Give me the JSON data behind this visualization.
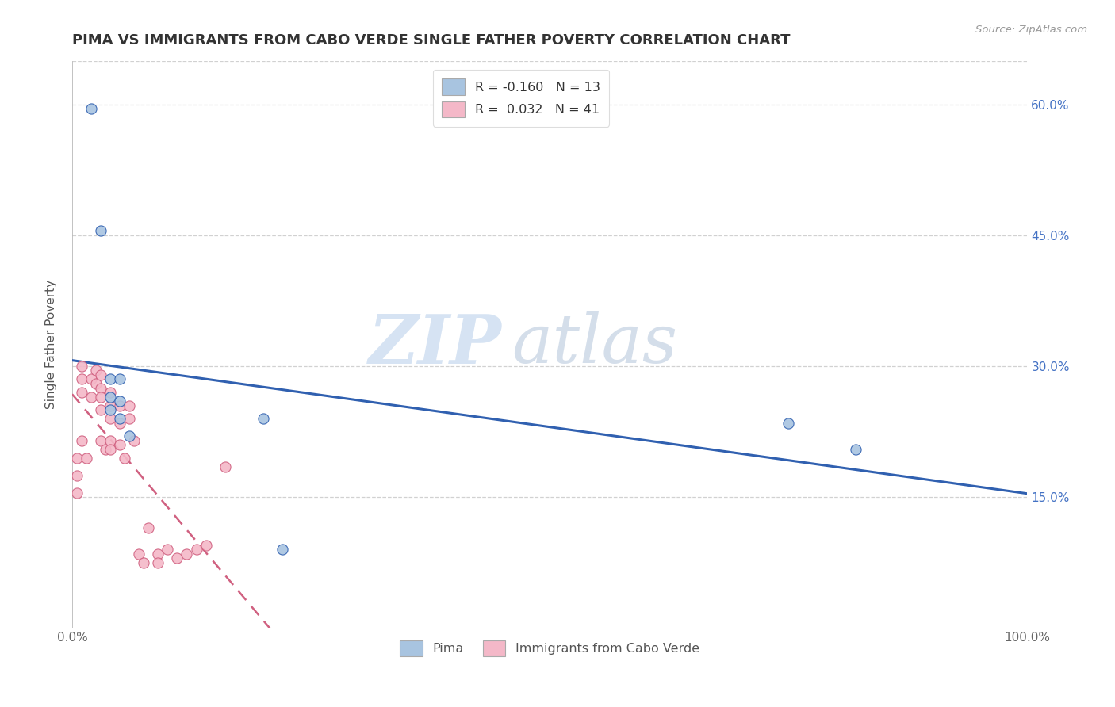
{
  "title": "PIMA VS IMMIGRANTS FROM CABO VERDE SINGLE FATHER POVERTY CORRELATION CHART",
  "source": "Source: ZipAtlas.com",
  "ylabel": "Single Father Poverty",
  "xlabel": "",
  "xlim": [
    0.0,
    1.0
  ],
  "ylim": [
    0.0,
    0.65
  ],
  "yticks": [
    0.15,
    0.3,
    0.45,
    0.6
  ],
  "ytick_labels": [
    "15.0%",
    "30.0%",
    "45.0%",
    "60.0%"
  ],
  "xticks": [
    0.0,
    1.0
  ],
  "xtick_labels": [
    "0.0%",
    "100.0%"
  ],
  "right_ytick_labels": [
    "15.0%",
    "30.0%",
    "45.0%",
    "60.0%"
  ],
  "pima_color": "#a8c4e0",
  "cabo_verde_color": "#f4b8c8",
  "pima_line_color": "#3060b0",
  "cabo_verde_line_color": "#d06080",
  "legend_R_pima": "R = -0.160",
  "legend_N_pima": "N = 13",
  "legend_R_cabo": "R =  0.032",
  "legend_N_cabo": "N = 41",
  "pima_x": [
    0.02,
    0.03,
    0.04,
    0.04,
    0.04,
    0.05,
    0.05,
    0.05,
    0.06,
    0.2,
    0.22,
    0.75,
    0.82
  ],
  "pima_y": [
    0.595,
    0.455,
    0.285,
    0.265,
    0.25,
    0.285,
    0.26,
    0.24,
    0.22,
    0.24,
    0.09,
    0.235,
    0.205
  ],
  "cabo_verde_x": [
    0.005,
    0.005,
    0.005,
    0.01,
    0.01,
    0.01,
    0.01,
    0.015,
    0.02,
    0.02,
    0.025,
    0.025,
    0.03,
    0.03,
    0.03,
    0.03,
    0.03,
    0.035,
    0.04,
    0.04,
    0.04,
    0.04,
    0.04,
    0.05,
    0.05,
    0.05,
    0.055,
    0.06,
    0.06,
    0.065,
    0.07,
    0.075,
    0.08,
    0.09,
    0.09,
    0.1,
    0.11,
    0.12,
    0.13,
    0.14,
    0.16
  ],
  "cabo_verde_y": [
    0.195,
    0.175,
    0.155,
    0.3,
    0.285,
    0.27,
    0.215,
    0.195,
    0.285,
    0.265,
    0.295,
    0.28,
    0.29,
    0.275,
    0.265,
    0.25,
    0.215,
    0.205,
    0.27,
    0.255,
    0.24,
    0.215,
    0.205,
    0.255,
    0.235,
    0.21,
    0.195,
    0.255,
    0.24,
    0.215,
    0.085,
    0.075,
    0.115,
    0.085,
    0.075,
    0.09,
    0.08,
    0.085,
    0.09,
    0.095,
    0.185
  ],
  "background_color": "#ffffff",
  "grid_color": "#cccccc",
  "watermark_zip": "ZIP",
  "watermark_atlas": "atlas",
  "watermark_color_zip": "#c8d8ec",
  "watermark_color_atlas": "#c0c8d8"
}
